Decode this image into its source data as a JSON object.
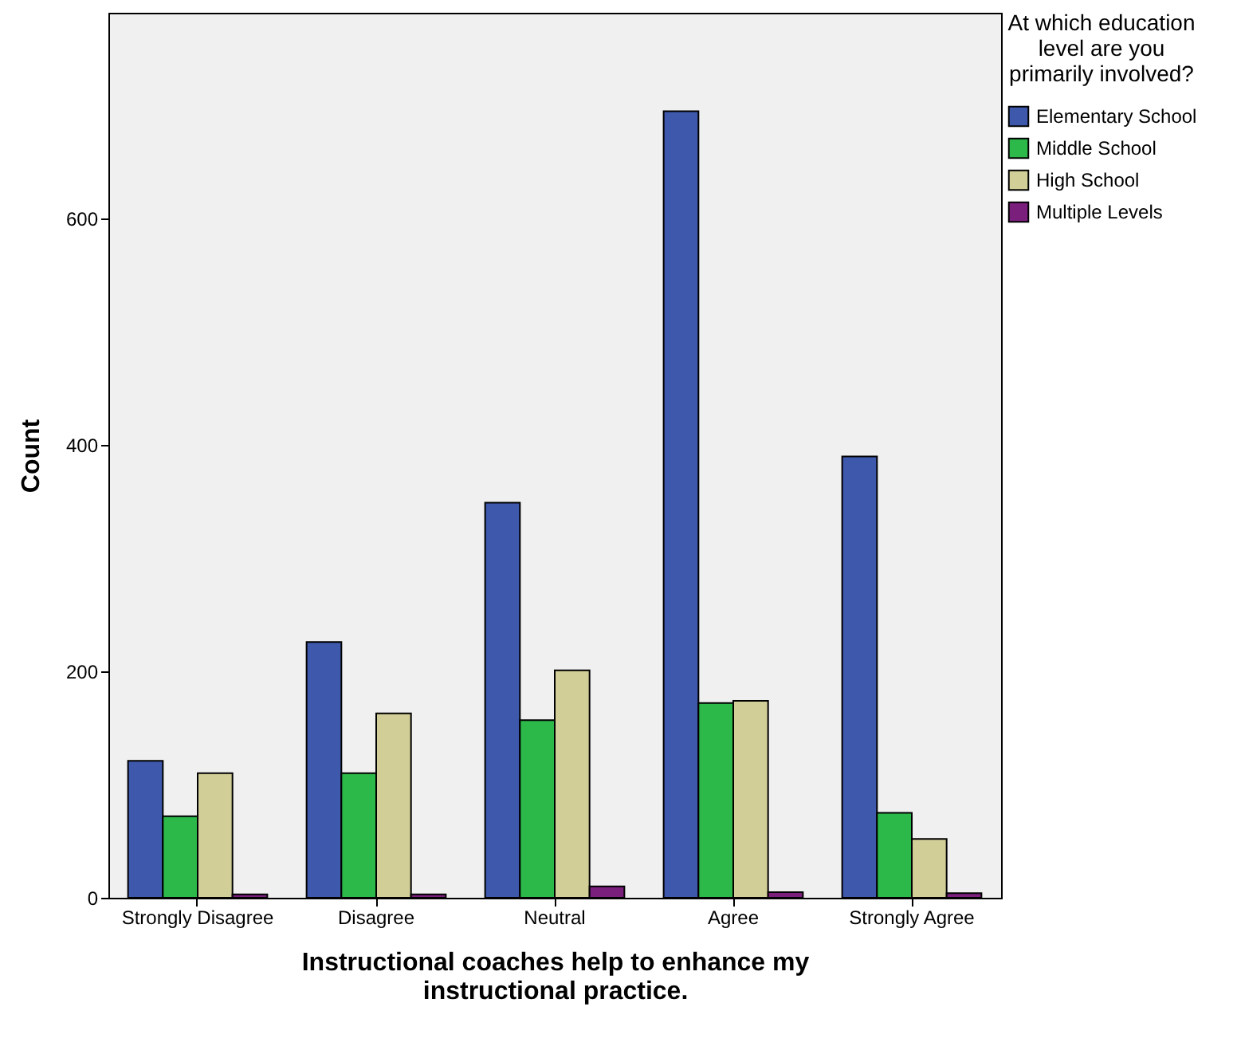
{
  "chart_data": {
    "type": "bar",
    "xlabel": "Instructional coaches help to enhance my instructional practice.",
    "ylabel": "Count",
    "legend_title": "At which education level are you primarily involved?",
    "categories": [
      "Strongly Disagree",
      "Disagree",
      "Neutral",
      "Agree",
      "Strongly Agree"
    ],
    "series": [
      {
        "name": "Elementary School",
        "color": "#3e58ac",
        "values": [
          121,
          226,
          349,
          695,
          390
        ]
      },
      {
        "name": "Middle School",
        "color": "#2db84a",
        "values": [
          72,
          110,
          157,
          172,
          75
        ]
      },
      {
        "name": "High School",
        "color": "#d2ce98",
        "values": [
          110,
          163,
          201,
          174,
          52
        ]
      },
      {
        "name": "Multiple Levels",
        "color": "#7b1f7d",
        "values": [
          3,
          3,
          10,
          5,
          4
        ]
      }
    ],
    "ylim": [
      0,
      782
    ],
    "yticks": [
      0,
      200,
      400,
      600
    ],
    "grid": false,
    "legend": "top right"
  }
}
